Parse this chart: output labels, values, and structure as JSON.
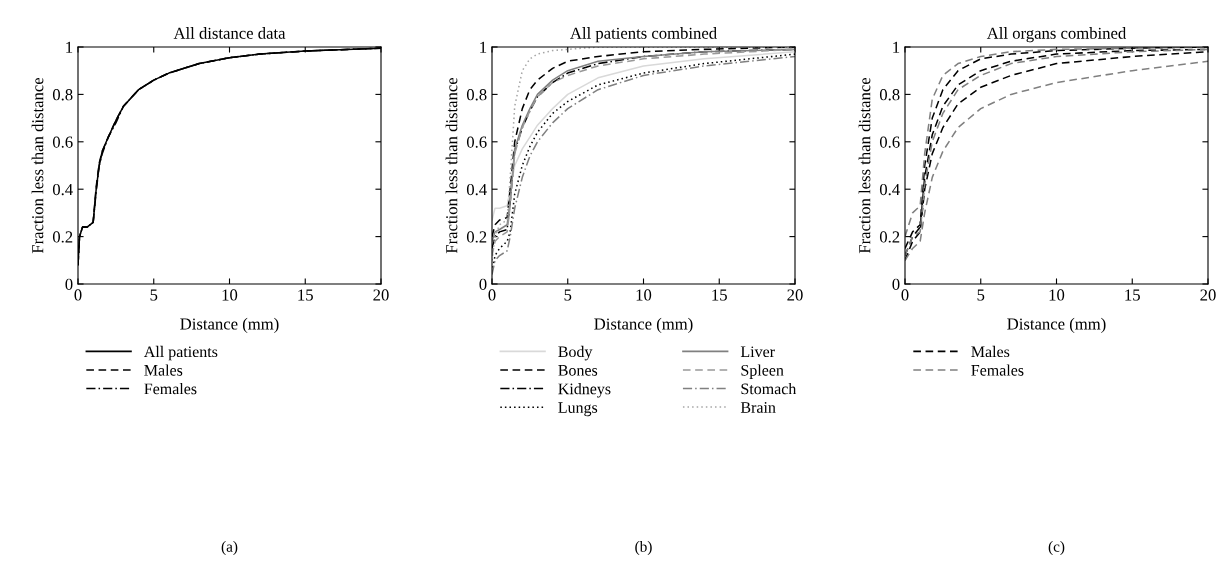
{
  "chart_data": [
    {
      "type": "line",
      "title": "All distance data",
      "xlabel": "Distance (mm)",
      "ylabel": "Fraction less than distance",
      "xlim": [
        0,
        20
      ],
      "ylim": [
        0,
        1
      ],
      "xticks": [
        0,
        5,
        10,
        15,
        20
      ],
      "yticks": [
        0,
        0.2,
        0.4,
        0.6,
        0.8,
        1
      ],
      "legend": "bottom",
      "annotations": [
        "(a)"
      ],
      "series": [
        {
          "name": "All patients",
          "color": "#000000",
          "line_style": "solid",
          "x": [
            0,
            0.1,
            0.3,
            0.6,
            1.0,
            1.2,
            1.4,
            1.6,
            2,
            2.5,
            3,
            4,
            5,
            6,
            8,
            10,
            12,
            15,
            20
          ],
          "values": [
            0.08,
            0.2,
            0.24,
            0.24,
            0.26,
            0.4,
            0.5,
            0.56,
            0.62,
            0.69,
            0.75,
            0.82,
            0.86,
            0.89,
            0.93,
            0.955,
            0.97,
            0.983,
            0.995
          ]
        },
        {
          "name": "Males",
          "color": "#000000",
          "line_style": "dashed",
          "x": [
            0,
            0.1,
            0.3,
            0.6,
            1.0,
            1.2,
            1.4,
            1.6,
            2,
            2.5,
            3,
            4,
            5,
            6,
            8,
            10,
            12,
            15,
            20
          ],
          "values": [
            0.08,
            0.2,
            0.24,
            0.24,
            0.26,
            0.41,
            0.51,
            0.56,
            0.62,
            0.69,
            0.75,
            0.82,
            0.86,
            0.89,
            0.93,
            0.955,
            0.97,
            0.983,
            0.995
          ]
        },
        {
          "name": "Females",
          "color": "#000000",
          "line_style": "dashdot",
          "x": [
            0,
            0.1,
            0.3,
            0.6,
            1.0,
            1.2,
            1.4,
            1.6,
            2,
            2.5,
            3,
            4,
            5,
            6,
            8,
            10,
            12,
            15,
            20
          ],
          "values": [
            0.08,
            0.2,
            0.24,
            0.24,
            0.26,
            0.39,
            0.5,
            0.55,
            0.62,
            0.68,
            0.75,
            0.82,
            0.86,
            0.89,
            0.93,
            0.955,
            0.97,
            0.983,
            0.995
          ]
        }
      ]
    },
    {
      "type": "line",
      "title": "All patients combined",
      "xlabel": "Distance (mm)",
      "ylabel": "Fraction less than distance",
      "xlim": [
        0,
        20
      ],
      "ylim": [
        0,
        1
      ],
      "xticks": [
        0,
        5,
        10,
        15,
        20
      ],
      "yticks": [
        0,
        0.2,
        0.4,
        0.6,
        0.8,
        1
      ],
      "legend": "bottom",
      "annotations": [
        "(b)"
      ],
      "series": [
        {
          "name": "Body",
          "color": "#d9d9d9",
          "line_style": "solid",
          "x": [
            0,
            0.2,
            0.5,
            1,
            1.2,
            1.5,
            2,
            2.5,
            3,
            4,
            5,
            7,
            10,
            14,
            20
          ],
          "values": [
            0.27,
            0.32,
            0.32,
            0.33,
            0.4,
            0.5,
            0.57,
            0.62,
            0.67,
            0.74,
            0.8,
            0.87,
            0.92,
            0.95,
            0.98
          ]
        },
        {
          "name": "Bones",
          "color": "#000000",
          "line_style": "dashed",
          "x": [
            0,
            0.2,
            0.5,
            1,
            1.2,
            1.5,
            2,
            2.5,
            3,
            4,
            5,
            7,
            10,
            14,
            20
          ],
          "values": [
            0.2,
            0.25,
            0.27,
            0.28,
            0.4,
            0.6,
            0.74,
            0.82,
            0.86,
            0.91,
            0.94,
            0.96,
            0.98,
            0.99,
            1.0
          ]
        },
        {
          "name": "Kidneys",
          "color": "#000000",
          "line_style": "dashdot",
          "x": [
            0,
            0.2,
            0.5,
            1,
            1.2,
            1.5,
            2,
            2.5,
            3,
            4,
            5,
            7,
            10,
            14,
            20
          ],
          "values": [
            0.15,
            0.2,
            0.22,
            0.23,
            0.35,
            0.56,
            0.66,
            0.73,
            0.79,
            0.85,
            0.89,
            0.93,
            0.96,
            0.98,
            0.99
          ]
        },
        {
          "name": "Lungs",
          "color": "#000000",
          "line_style": "dotted",
          "x": [
            0,
            0.2,
            0.5,
            1,
            1.2,
            1.5,
            2,
            2.5,
            3,
            4,
            5,
            7,
            10,
            14,
            20
          ],
          "values": [
            0.05,
            0.12,
            0.15,
            0.18,
            0.22,
            0.38,
            0.5,
            0.58,
            0.64,
            0.72,
            0.77,
            0.84,
            0.89,
            0.93,
            0.97
          ]
        },
        {
          "name": "Liver",
          "color": "#808080",
          "line_style": "solid",
          "x": [
            0,
            0.2,
            0.5,
            1,
            1.2,
            1.5,
            2,
            2.5,
            3,
            4,
            5,
            7,
            10,
            14,
            20
          ],
          "values": [
            0.18,
            0.22,
            0.23,
            0.25,
            0.35,
            0.57,
            0.67,
            0.74,
            0.8,
            0.86,
            0.9,
            0.94,
            0.96,
            0.98,
            0.99
          ]
        },
        {
          "name": "Spleen",
          "color": "#999999",
          "line_style": "dashed",
          "x": [
            0,
            0.2,
            0.5,
            1,
            1.2,
            1.5,
            2,
            2.5,
            3,
            4,
            5,
            7,
            10,
            14,
            20
          ],
          "values": [
            0.12,
            0.18,
            0.2,
            0.22,
            0.33,
            0.55,
            0.66,
            0.73,
            0.79,
            0.85,
            0.88,
            0.92,
            0.95,
            0.97,
            0.99
          ]
        },
        {
          "name": "Stomach",
          "color": "#808080",
          "line_style": "dashdot",
          "x": [
            0,
            0.2,
            0.5,
            1,
            1.2,
            1.5,
            2,
            2.5,
            3,
            4,
            5,
            7,
            10,
            14,
            20
          ],
          "values": [
            0.04,
            0.1,
            0.12,
            0.14,
            0.2,
            0.32,
            0.45,
            0.54,
            0.6,
            0.68,
            0.74,
            0.82,
            0.88,
            0.92,
            0.96
          ]
        },
        {
          "name": "Brain",
          "color": "#a6a6a6",
          "line_style": "dotted",
          "x": [
            0,
            0.2,
            0.5,
            1,
            1.2,
            1.5,
            2,
            2.5,
            3,
            4,
            5,
            7,
            10,
            14,
            20
          ],
          "values": [
            0.1,
            0.2,
            0.25,
            0.27,
            0.45,
            0.75,
            0.9,
            0.95,
            0.97,
            0.985,
            0.99,
            1.0,
            1.0,
            1.0,
            1.0
          ]
        }
      ]
    },
    {
      "type": "line",
      "title": "All organs combined",
      "xlabel": "Distance (mm)",
      "ylabel": "Fraction less than distance",
      "xlim": [
        0,
        20
      ],
      "ylim": [
        0,
        1
      ],
      "xticks": [
        0,
        5,
        10,
        15,
        20
      ],
      "yticks": [
        0,
        0.2,
        0.4,
        0.6,
        0.8,
        1
      ],
      "legend": "bottom",
      "annotations": [
        "(c)"
      ],
      "series": [
        {
          "name": "Males",
          "color": "#000000",
          "line_style": "dashed",
          "x": [
            0,
            0.5,
            1,
            1.3,
            1.8,
            2.5,
            3.5,
            5,
            7,
            10,
            15,
            20
          ],
          "values": [
            0.15,
            0.22,
            0.25,
            0.5,
            0.7,
            0.82,
            0.9,
            0.95,
            0.97,
            0.985,
            0.995,
            1.0
          ]
        },
        {
          "color": "#000000",
          "line_style": "dashed",
          "x": [
            0,
            0.5,
            1,
            1.3,
            1.8,
            2.5,
            3.5,
            5,
            7,
            10,
            15,
            20
          ],
          "values": [
            0.12,
            0.2,
            0.24,
            0.45,
            0.63,
            0.75,
            0.84,
            0.9,
            0.94,
            0.97,
            0.985,
            0.99
          ]
        },
        {
          "color": "#000000",
          "line_style": "dashed",
          "x": [
            0,
            0.5,
            1,
            1.3,
            1.8,
            2.5,
            3.5,
            5,
            7,
            10,
            15,
            20
          ],
          "values": [
            0.1,
            0.18,
            0.22,
            0.4,
            0.55,
            0.66,
            0.76,
            0.83,
            0.88,
            0.93,
            0.96,
            0.98
          ]
        },
        {
          "name": "Females",
          "color": "#808080",
          "line_style": "dashed",
          "x": [
            0,
            0.5,
            1,
            1.3,
            1.8,
            2.5,
            3.5,
            5,
            7,
            10,
            15,
            20
          ],
          "values": [
            0.2,
            0.3,
            0.33,
            0.55,
            0.78,
            0.88,
            0.93,
            0.96,
            0.98,
            0.99,
            0.995,
            1.0
          ]
        },
        {
          "color": "#808080",
          "line_style": "dashed",
          "x": [
            0,
            0.5,
            1,
            1.3,
            1.8,
            2.5,
            3.5,
            5,
            7,
            10,
            15,
            20
          ],
          "values": [
            0.12,
            0.2,
            0.22,
            0.42,
            0.6,
            0.72,
            0.82,
            0.88,
            0.93,
            0.96,
            0.98,
            0.99
          ]
        },
        {
          "color": "#808080",
          "line_style": "dashed",
          "x": [
            0,
            0.5,
            1,
            1.3,
            1.8,
            2.5,
            3.5,
            5,
            7,
            10,
            15,
            20
          ],
          "values": [
            0.1,
            0.15,
            0.18,
            0.3,
            0.45,
            0.56,
            0.66,
            0.74,
            0.8,
            0.85,
            0.9,
            0.94
          ]
        }
      ]
    }
  ]
}
